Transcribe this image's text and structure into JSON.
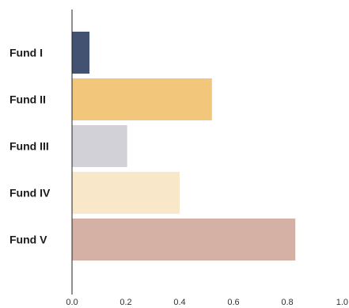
{
  "chart_data": {
    "type": "bar",
    "orientation": "horizontal",
    "categories": [
      "Fund I",
      "Fund II",
      "Fund III",
      "Fund IV",
      "Fund V"
    ],
    "values": [
      0.065,
      0.52,
      0.205,
      0.4,
      0.83
    ],
    "colors": [
      "#435270",
      "#f2c77c",
      "#d1d1d7",
      "#f8e7c9",
      "#d5b1a5"
    ],
    "x_ticks": [
      "0.0",
      "0.2",
      "0.4",
      "0.6",
      "0.8",
      "1.0"
    ],
    "xlim": [
      0,
      1.0
    ],
    "title": "",
    "xlabel": "",
    "ylabel": "",
    "grid": false,
    "legend": "none"
  }
}
